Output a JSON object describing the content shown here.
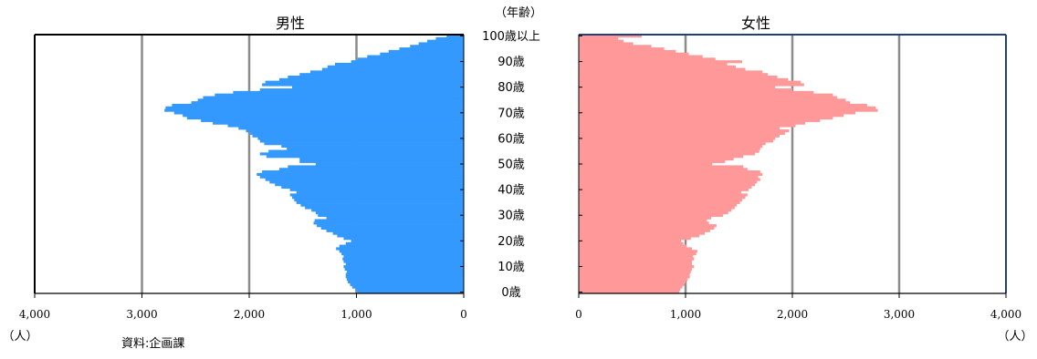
{
  "chart_data": [
    {
      "type": "bar",
      "orientation": "horizontal",
      "title": "男性",
      "x_direction": "reversed",
      "xlim": [
        0,
        4000
      ],
      "xticks": [
        "4,000",
        "3,000",
        "2,000",
        "1,000",
        "0"
      ],
      "unit": "（人）",
      "color": "#3399ff",
      "grid": true,
      "age_start": 0,
      "values": [
        990,
        1010,
        1040,
        1060,
        1080,
        1090,
        1100,
        1100,
        1090,
        1110,
        1120,
        1100,
        1120,
        1130,
        1120,
        1140,
        1160,
        1190,
        1160,
        1100,
        1050,
        1120,
        1180,
        1220,
        1280,
        1330,
        1370,
        1400,
        1390,
        1280,
        1360,
        1380,
        1420,
        1480,
        1520,
        1560,
        1580,
        1600,
        1620,
        1560,
        1620,
        1700,
        1760,
        1810,
        1850,
        1900,
        1930,
        1880,
        1720,
        1640,
        1380,
        1530,
        1530,
        1840,
        1900,
        1820,
        1650,
        1700,
        1860,
        1900,
        1920,
        1970,
        1990,
        2030,
        2100,
        2200,
        2340,
        2450,
        2580,
        2620,
        2700,
        2790,
        2780,
        2720,
        2540,
        2480,
        2430,
        2320,
        2150,
        1900,
        1600,
        1880,
        1850,
        1720,
        1640,
        1530,
        1430,
        1320,
        1270,
        1200,
        1050,
        990,
        900,
        780,
        700,
        600,
        500,
        420,
        340,
        260,
        160
      ]
    },
    {
      "type": "bar",
      "orientation": "horizontal",
      "title": "女性",
      "x_direction": "normal",
      "xlim": [
        0,
        4000
      ],
      "xticks": [
        "0",
        "1,000",
        "2,000",
        "3,000",
        "4,000"
      ],
      "unit": "（人）",
      "color": "#ff9999",
      "grid": true,
      "age_start": 0,
      "values": [
        940,
        950,
        970,
        990,
        1000,
        1020,
        1040,
        1040,
        1050,
        1060,
        1080,
        1060,
        1060,
        1080,
        1070,
        1100,
        1110,
        1060,
        1010,
        980,
        960,
        1050,
        1130,
        1180,
        1230,
        1270,
        1290,
        1220,
        1200,
        1240,
        1350,
        1400,
        1430,
        1460,
        1480,
        1510,
        1530,
        1560,
        1580,
        1520,
        1590,
        1620,
        1650,
        1670,
        1700,
        1680,
        1720,
        1700,
        1580,
        1540,
        1250,
        1370,
        1450,
        1540,
        1650,
        1690,
        1700,
        1720,
        1750,
        1820,
        1840,
        1880,
        1930,
        1970,
        1880,
        2030,
        2120,
        2260,
        2380,
        2480,
        2590,
        2800,
        2780,
        2700,
        2540,
        2500,
        2420,
        2380,
        2200,
        2000,
        1840,
        2110,
        2080,
        1960,
        1860,
        1770,
        1720,
        1560,
        1470,
        1390,
        1530,
        1280,
        1160,
        1030,
        910,
        800,
        680,
        510,
        420,
        370,
        590
      ]
    }
  ],
  "age_axis": {
    "header": "（年齢）",
    "labels": [
      {
        "age": 0,
        "text": "0歳"
      },
      {
        "age": 10,
        "text": "10歳"
      },
      {
        "age": 20,
        "text": "20歳"
      },
      {
        "age": 30,
        "text": "30歳"
      },
      {
        "age": 40,
        "text": "40歳"
      },
      {
        "age": 50,
        "text": "50歳"
      },
      {
        "age": 60,
        "text": "60歳"
      },
      {
        "age": 70,
        "text": "70歳"
      },
      {
        "age": 80,
        "text": "80歳"
      },
      {
        "age": 90,
        "text": "90歳"
      },
      {
        "age": 100,
        "text": "100歳以上"
      }
    ]
  },
  "source": "資料:企画課"
}
